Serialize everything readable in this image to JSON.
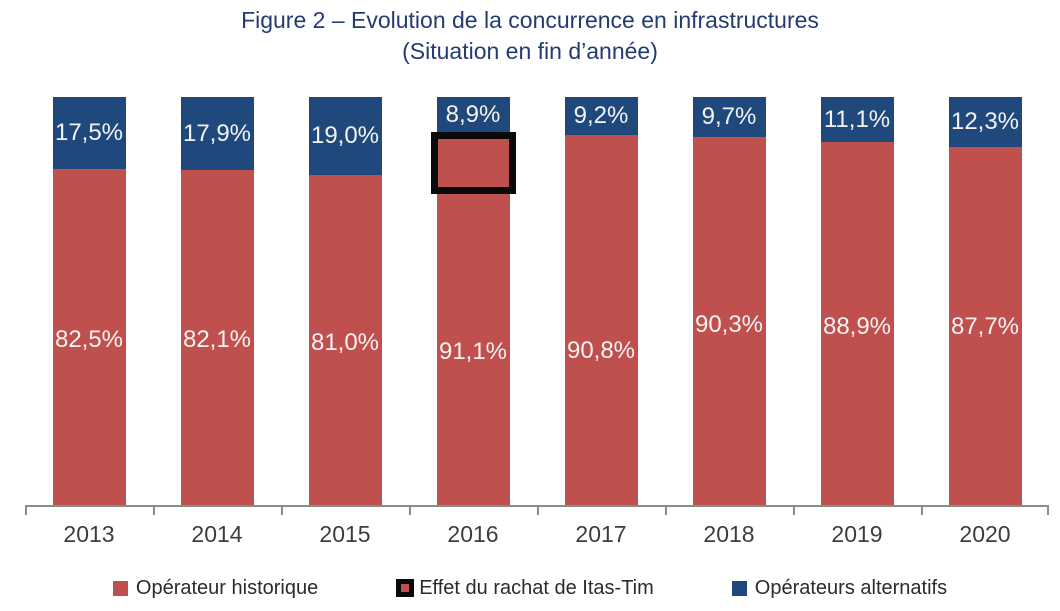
{
  "title": {
    "line1": "Figure 2 – Evolution de la concurrence en infrastructures",
    "line2": "(Situation en fin d’année)"
  },
  "colors": {
    "historique": "#C0504D",
    "alternatifs": "#1F497D",
    "annotation_border": "#0A0A0A",
    "title_text": "#243B72",
    "axis": "#8C8C8C",
    "category_text": "#3D3D3D",
    "data_label_text": "#F4F2F2"
  },
  "chart_data": {
    "type": "bar",
    "stacked": true,
    "title": "Figure 2 – Evolution de la concurrence en infrastructures (Situation en fin d’année)",
    "categories": [
      "2013",
      "2014",
      "2015",
      "2016",
      "2017",
      "2018",
      "2019",
      "2020"
    ],
    "series": [
      {
        "name": "Opérateur historique",
        "color_key": "historique",
        "values": [
          82.5,
          82.1,
          81.0,
          91.1,
          90.8,
          90.3,
          88.9,
          87.7
        ],
        "labels": [
          "82,5%",
          "82,1%",
          "81,0%",
          "91,1%",
          "90,8%",
          "90,3%",
          "88,9%",
          "87,7%"
        ]
      },
      {
        "name": "Opérateurs alternatifs",
        "color_key": "alternatifs",
        "values": [
          17.5,
          17.9,
          19.0,
          8.9,
          9.2,
          9.7,
          11.1,
          12.3
        ],
        "labels": [
          "17,5%",
          "17,9%",
          "19,0%",
          "8,9%",
          "9,2%",
          "9,7%",
          "11,1%",
          "12,3%"
        ]
      }
    ],
    "ylim": [
      0,
      100
    ],
    "grid": false,
    "legend_position": "bottom",
    "annotation": {
      "label": "Effet du rachat de Itas-Tim",
      "category": "2016"
    }
  },
  "legend": {
    "items": [
      {
        "label": "Opérateur historique"
      },
      {
        "label": "Effet du rachat de Itas-Tim"
      },
      {
        "label": "Opérateurs alternatifs"
      }
    ]
  }
}
